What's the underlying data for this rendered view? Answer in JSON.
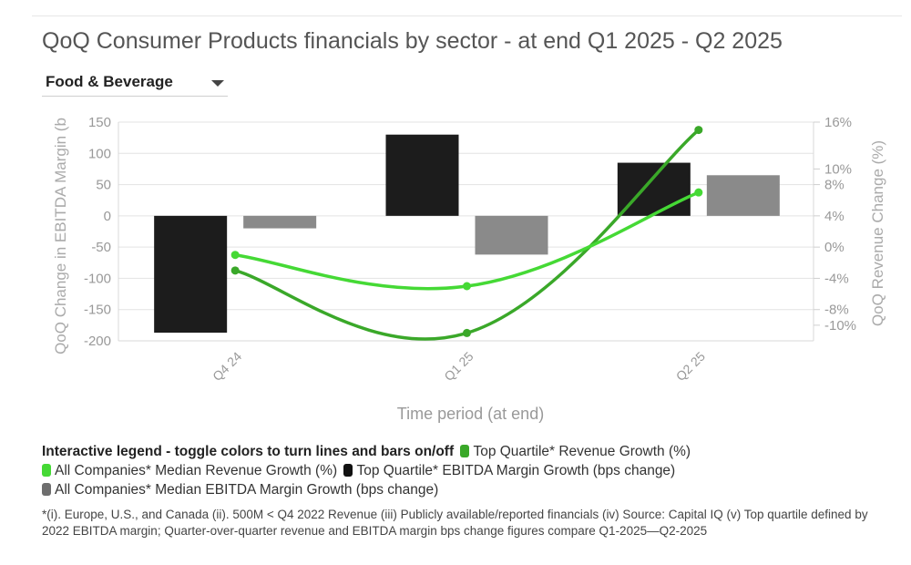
{
  "title": "QoQ Consumer Products financials by sector - at end Q1 2025 - Q2 2025",
  "sector_select": {
    "value": "Food & Beverage"
  },
  "legend": {
    "heading": "Interactive legend - toggle colors to turn lines and bars on/off",
    "items": [
      {
        "label": "Top Quartile* Revenue Growth (%)",
        "color": "#3aa829"
      },
      {
        "label": "All Companies* Median Revenue Growth (%)",
        "color": "#45d935"
      },
      {
        "label": "Top Quartile* EBITDA Margin Growth (bps change)",
        "color": "#111111"
      },
      {
        "label": "All Companies* Median EBITDA Margin Growth (bps change)",
        "color": "#6e6e6e"
      }
    ]
  },
  "footnote": "*(i). Europe, U.S., and Canada (ii). 500M < Q4 2022 Revenue (iii) Publicly available/reported financials (iv) Source: Capital IQ (v) Top quartile defined by 2022 EBITDA margin; Quarter-over-quarter revenue and EBITDA margin bps change figures compare Q1-2025—Q2-2025",
  "chart_data": {
    "type": "bar+line",
    "categories": [
      "Q4 24",
      "Q1 25",
      "Q2 25"
    ],
    "xlabel": "Time period (at end)",
    "ylabel_left": "QoQ Change in EBITDA Margin (b",
    "ylabel_right": "QoQ Revenue Change (%)",
    "ylim_left": [
      -200,
      150
    ],
    "yticks_left": [
      "150",
      "100",
      "50",
      "0",
      "-50",
      "-100",
      "-150",
      "-200"
    ],
    "yticks_left_values": [
      150,
      100,
      50,
      0,
      -50,
      -100,
      -150,
      -200
    ],
    "yticks_right": [
      "16%",
      "10%",
      "8%",
      "4%",
      "0%",
      "-4%",
      "-8%",
      "-10%"
    ],
    "yticks_right_values": [
      16,
      10,
      8,
      4,
      0,
      -4,
      -8,
      -10
    ],
    "right_range": [
      -12,
      16
    ],
    "bar_series": [
      {
        "name": "Top Quartile* EBITDA Margin Growth (bps change)",
        "color": "#1c1c1c",
        "values": [
          -187,
          130,
          85
        ]
      },
      {
        "name": "All Companies* Median EBITDA Margin Growth (bps change)",
        "color": "#8a8a8a",
        "values": [
          -20,
          -62,
          65
        ]
      }
    ],
    "line_series": [
      {
        "name": "Top Quartile* Revenue Growth (%)",
        "color": "#3aa829",
        "values": [
          -3,
          -11,
          15
        ]
      },
      {
        "name": "All Companies* Median Revenue Growth (%)",
        "color": "#45d935",
        "values": [
          -1,
          -5,
          7
        ]
      }
    ]
  }
}
